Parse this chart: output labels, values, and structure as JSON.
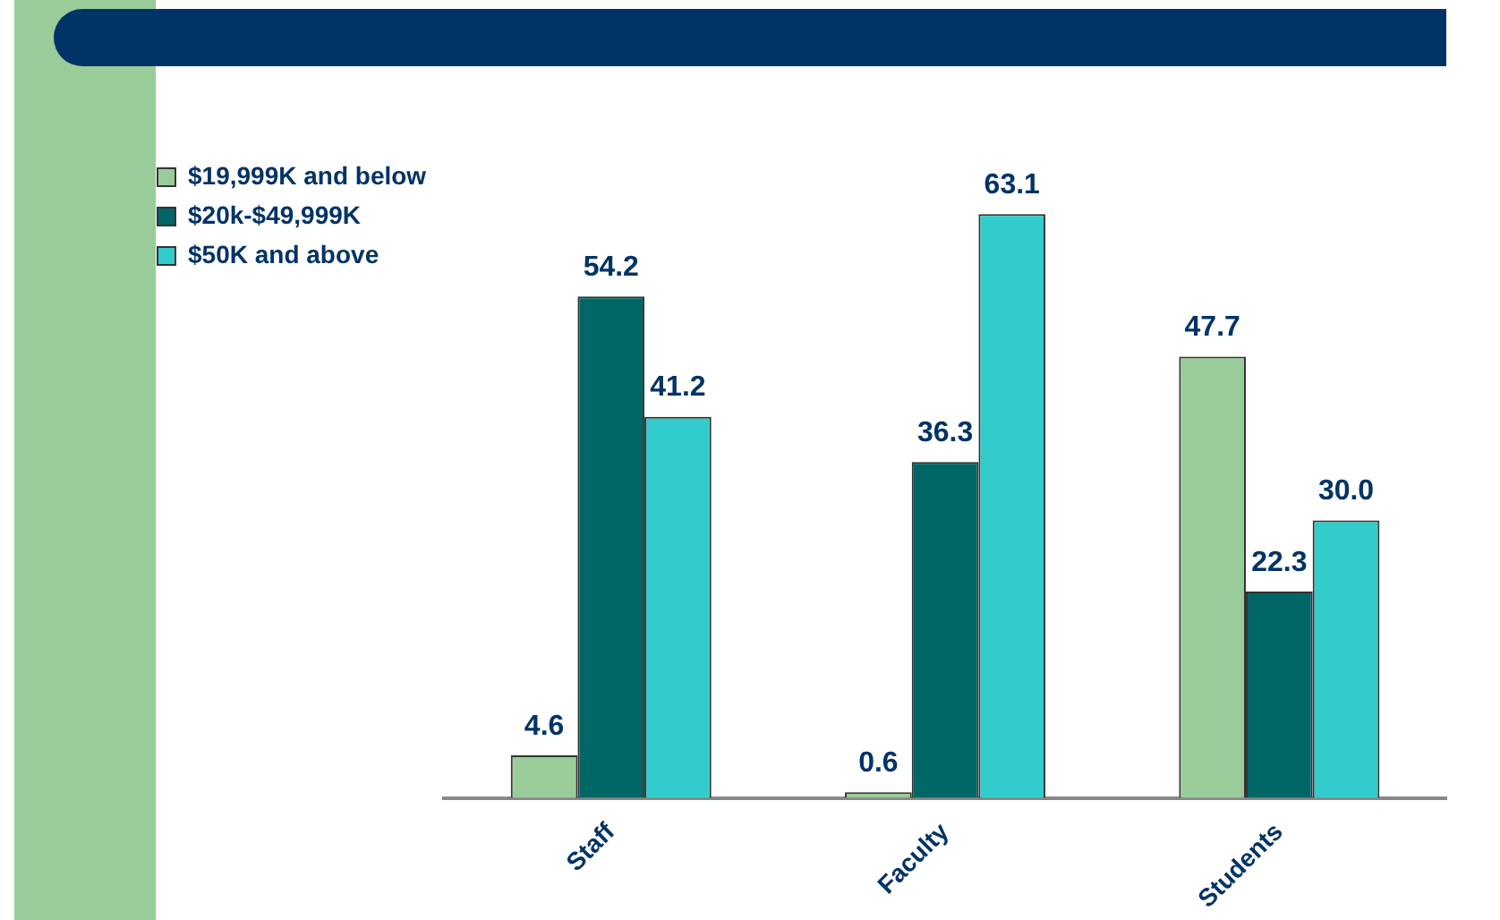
{
  "chart_data": {
    "type": "bar",
    "categories": [
      "Staff",
      "Faculty",
      "Students"
    ],
    "series": [
      {
        "name": "$19,999K and below",
        "color": "#99cc99",
        "values": [
          4.6,
          0.6,
          47.7
        ],
        "value_labels": [
          "4.6",
          "0.6",
          "47.7"
        ]
      },
      {
        "name": "$20k-$49,999K",
        "color": "#006666",
        "values": [
          54.2,
          36.3,
          22.3
        ],
        "value_labels": [
          "54.2",
          "36.3",
          "22.3"
        ]
      },
      {
        "name": "$50K and above",
        "color": "#33cccc",
        "values": [
          41.2,
          63.1,
          30.0
        ],
        "value_labels": [
          "41.2",
          "63.1",
          "30.0"
        ]
      }
    ],
    "legend": "top left",
    "grid": false,
    "tick_labels": "x"
  }
}
